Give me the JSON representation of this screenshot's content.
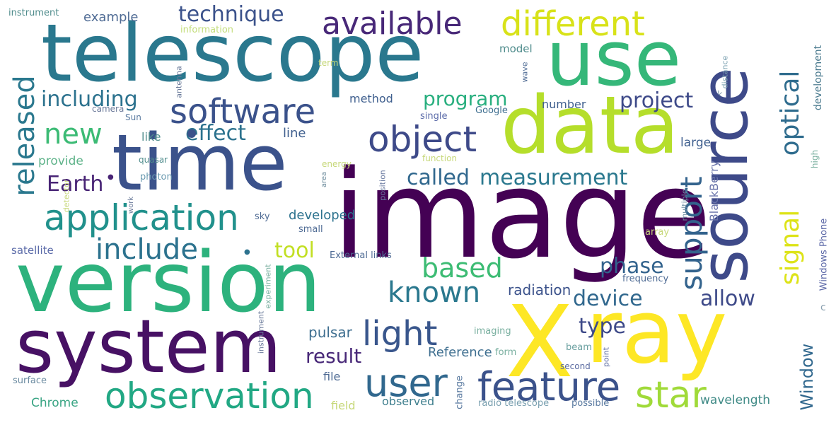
{
  "cloud": {
    "words": [
      {
        "id": "image",
        "text": "image",
        "color": "#440154"
      },
      {
        "id": "version",
        "text": "version",
        "color": "#2db27d"
      },
      {
        "id": "telescope",
        "text": "telescope",
        "color": "#2a788e"
      },
      {
        "id": "system",
        "text": "system",
        "color": "#471164"
      },
      {
        "id": "time",
        "text": "time",
        "color": "#3b528b"
      },
      {
        "id": "data",
        "text": "data",
        "color": "#b5de2b"
      },
      {
        "id": "use",
        "text": "use",
        "color": "#35b779"
      },
      {
        "id": "source",
        "text": "source",
        "color": "#3e4a89"
      },
      {
        "id": "x",
        "text": "X",
        "color": "#fde725"
      },
      {
        "id": "ray",
        "text": "ray",
        "color": "#fde725"
      },
      {
        "id": "observation",
        "text": "observation",
        "color": "#22a884"
      },
      {
        "id": "feature",
        "text": "feature",
        "color": "#3b528b"
      },
      {
        "id": "application",
        "text": "application",
        "color": "#21918c"
      },
      {
        "id": "software",
        "text": "software",
        "color": "#3b528b"
      },
      {
        "id": "user",
        "text": "user",
        "color": "#31688e"
      },
      {
        "id": "star",
        "text": "star",
        "color": "#a0da39"
      },
      {
        "id": "object",
        "text": "object",
        "color": "#3e4a89"
      },
      {
        "id": "different",
        "text": "different",
        "color": "#d8e219"
      },
      {
        "id": "available",
        "text": "available",
        "color": "#482878"
      },
      {
        "id": "released",
        "text": "released",
        "color": "#2a788e"
      },
      {
        "id": "light",
        "text": "light",
        "color": "#39568c"
      },
      {
        "id": "include",
        "text": "include",
        "color": "#2c728e"
      },
      {
        "id": "new",
        "text": "new",
        "color": "#3cbb75"
      },
      {
        "id": "known",
        "text": "known",
        "color": "#2a788e"
      },
      {
        "id": "support",
        "text": "support",
        "color": "#33638d"
      },
      {
        "id": "signal",
        "text": "signal",
        "color": "#dde318"
      },
      {
        "id": "optical",
        "text": "optical",
        "color": "#2f6c8e"
      },
      {
        "id": "based",
        "text": "based",
        "color": "#3dbc74"
      },
      {
        "id": "technique",
        "text": "technique",
        "color": "#3b528b"
      },
      {
        "id": "including",
        "text": "including",
        "color": "#2c728e"
      },
      {
        "id": "effect",
        "text": "effect",
        "color": "#2c728e"
      },
      {
        "id": "program",
        "text": "program",
        "color": "#29af7f"
      },
      {
        "id": "project",
        "text": "project",
        "color": "#3e4a89"
      },
      {
        "id": "called",
        "text": "called",
        "color": "#31688e"
      },
      {
        "id": "measurement",
        "text": "measurement",
        "color": "#2a788e"
      },
      {
        "id": "earth",
        "text": "Earth",
        "color": "#482475"
      },
      {
        "id": "phase",
        "text": "phase",
        "color": "#33638d"
      },
      {
        "id": "device",
        "text": "device",
        "color": "#31688e"
      },
      {
        "id": "allow",
        "text": "allow",
        "color": "#3e4a89"
      },
      {
        "id": "type",
        "text": "type",
        "color": "#3e4a89"
      },
      {
        "id": "result",
        "text": "result",
        "color": "#482878"
      },
      {
        "id": "tool",
        "text": "tool",
        "color": "#c2df23"
      },
      {
        "id": "window",
        "text": "Window",
        "color": "#31688e"
      },
      {
        "id": "windowsphone",
        "text": "Windows Phone",
        "color": "#5e6aa8"
      },
      {
        "id": "blackberry",
        "text": "BlackBerry",
        "color": "#6a74aa"
      },
      {
        "id": "developed",
        "text": "developed",
        "color": "#2c728e"
      },
      {
        "id": "development",
        "text": "development",
        "color": "#4a7a8e"
      },
      {
        "id": "satellite",
        "text": "satellite",
        "color": "#5a6aa8"
      },
      {
        "id": "radiation",
        "text": "radiation",
        "color": "#3b528b"
      },
      {
        "id": "pulsar",
        "text": "pulsar",
        "color": "#3f6f90"
      },
      {
        "id": "reference",
        "text": "Reference",
        "color": "#3f6f90"
      },
      {
        "id": "chrome",
        "text": "Chrome",
        "color": "#3aa584"
      },
      {
        "id": "example",
        "text": "example",
        "color": "#4f6b94"
      },
      {
        "id": "instrument",
        "text": "instrument",
        "color": "#4f8c8c"
      },
      {
        "id": "information",
        "text": "information",
        "color": "#c3dd7b"
      },
      {
        "id": "model",
        "text": "model",
        "color": "#4f8c8c"
      },
      {
        "id": "wave",
        "text": "wave",
        "color": "#4f6b94"
      },
      {
        "id": "distance",
        "text": "distance",
        "color": "#7aa0b0"
      },
      {
        "id": "method",
        "text": "method",
        "color": "#3f5f8e"
      },
      {
        "id": "number",
        "text": "number",
        "color": "#3f5f8e"
      },
      {
        "id": "google",
        "text": "Google",
        "color": "#3f6f90"
      },
      {
        "id": "single",
        "text": "single",
        "color": "#5a6aa8"
      },
      {
        "id": "camera",
        "text": "camera",
        "color": "#6c7a9a"
      },
      {
        "id": "sun",
        "text": "Sun",
        "color": "#5a7aa0"
      },
      {
        "id": "antenna",
        "text": "antenna",
        "color": "#6a7a9a"
      },
      {
        "id": "term",
        "text": "term",
        "color": "#c7d87a"
      },
      {
        "id": "like",
        "text": "like",
        "color": "#4f8c8c"
      },
      {
        "id": "line",
        "text": "line",
        "color": "#3f5f8e"
      },
      {
        "id": "large",
        "text": "large",
        "color": "#3f5f8e"
      },
      {
        "id": "provide",
        "text": "provide",
        "color": "#5fb38a"
      },
      {
        "id": "quasar",
        "text": "quasar",
        "color": "#4f8c8c"
      },
      {
        "id": "energy",
        "text": "energy",
        "color": "#c7d87a"
      },
      {
        "id": "function",
        "text": "function",
        "color": "#c7d87a"
      },
      {
        "id": "photon",
        "text": "photon",
        "color": "#6a9ab0"
      },
      {
        "id": "work",
        "text": "work",
        "color": "#6a7a9a"
      },
      {
        "id": "area",
        "text": "area",
        "color": "#6a8a9a"
      },
      {
        "id": "position",
        "text": "position",
        "color": "#6a7aa0"
      },
      {
        "id": "detector",
        "text": "detector",
        "color": "#c7d87a"
      },
      {
        "id": "multiple",
        "text": "multiple",
        "color": "#6a8aa0"
      },
      {
        "id": "sky",
        "text": "sky",
        "color": "#4f6b94"
      },
      {
        "id": "small",
        "text": "small",
        "color": "#4f6b94"
      },
      {
        "id": "array",
        "text": "array",
        "color": "#c7d87a"
      },
      {
        "id": "high",
        "text": "high",
        "color": "#7ab0a0"
      },
      {
        "id": "externallinks",
        "text": "External links",
        "color": "#4f6b94"
      },
      {
        "id": "frequency",
        "text": "frequency",
        "color": "#4f6b94"
      },
      {
        "id": "experiment",
        "text": "experiment",
        "color": "#7ab0a0"
      },
      {
        "id": "instrumentv",
        "text": "instrument",
        "color": "#6a7a9a"
      },
      {
        "id": "imaging",
        "text": "imaging",
        "color": "#7ab0a0"
      },
      {
        "id": "beam",
        "text": "beam",
        "color": "#6aa0a0"
      },
      {
        "id": "point",
        "text": "point",
        "color": "#5a6aa0"
      },
      {
        "id": "form",
        "text": "form",
        "color": "#7ab0a0"
      },
      {
        "id": "change",
        "text": "change",
        "color": "#5a7aa0"
      },
      {
        "id": "second",
        "text": "second",
        "color": "#5a6aa0"
      },
      {
        "id": "file",
        "text": "file",
        "color": "#4f6b94"
      },
      {
        "id": "surface",
        "text": "surface",
        "color": "#6a8aa0"
      },
      {
        "id": "field",
        "text": "field",
        "color": "#c7d87a"
      },
      {
        "id": "observed",
        "text": "observed",
        "color": "#3f7f8e"
      },
      {
        "id": "radiotelescope",
        "text": "radio telescope",
        "color": "#7aa0b0"
      },
      {
        "id": "possible",
        "text": "possible",
        "color": "#5a7aa0"
      },
      {
        "id": "wavelength",
        "text": "wavelength",
        "color": "#3f8a86"
      },
      {
        "id": "c",
        "text": "c",
        "color": "#8aa0b0"
      },
      {
        "id": "k",
        "text": "k",
        "color": "#8aa0b0"
      }
    ]
  }
}
